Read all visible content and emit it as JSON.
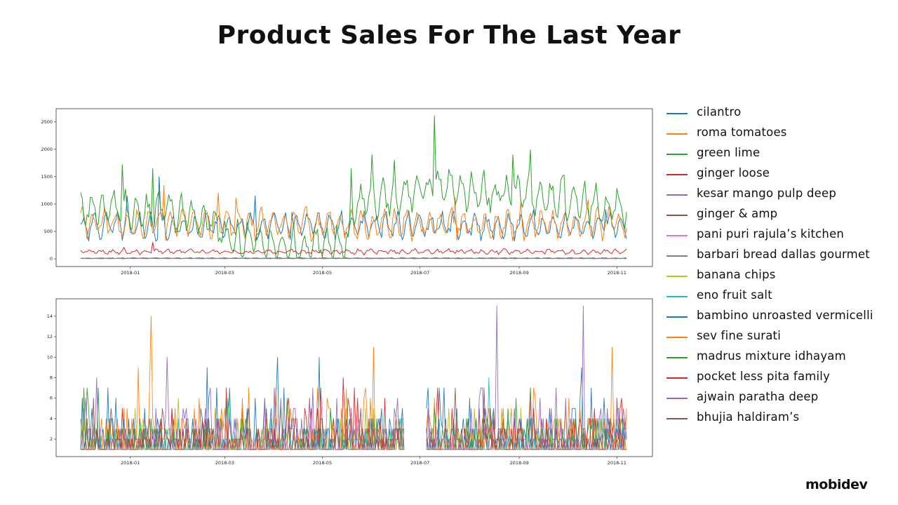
{
  "page": {
    "title": "Product Sales For The Last Year",
    "brand": "mobidev"
  },
  "legend": [
    {
      "label": "cilantro",
      "color": "#1f77b4"
    },
    {
      "label": "roma tomatoes",
      "color": "#ff7f0e"
    },
    {
      "label": "green lime",
      "color": "#2ca02c"
    },
    {
      "label": "ginger loose",
      "color": "#d62728"
    },
    {
      "label": "kesar mango pulp deep",
      "color": "#9467bd"
    },
    {
      "label": "ginger & amp",
      "color": "#8c564b"
    },
    {
      "label": "pani puri rajula’s kitchen",
      "color": "#e377c2"
    },
    {
      "label": "barbari bread dallas gourmet",
      "color": "#7f7f7f"
    },
    {
      "label": "banana chips",
      "color": "#bcbd22"
    },
    {
      "label": "eno fruit salt",
      "color": "#17becf"
    },
    {
      "label": "bambino unroasted vermicelli",
      "color": "#1f77b4"
    },
    {
      "label": "sev fine surati",
      "color": "#ff7f0e"
    },
    {
      "label": "madrus mixture idhayam",
      "color": "#2ca02c"
    },
    {
      "label": "pocket less pita family",
      "color": "#d62728"
    },
    {
      "label": "ajwain paratha deep",
      "color": "#9467bd"
    },
    {
      "label": "bhujia haldiram’s",
      "color": "#8c564b"
    }
  ],
  "chart_data": [
    {
      "type": "line",
      "title": "",
      "xlabel": "",
      "ylabel": "",
      "x_range": [
        "2017-12-01",
        "2018-11-07"
      ],
      "ylim": [
        -140,
        2740
      ],
      "x_ticks": [
        "2018-01",
        "2018-03",
        "2018-05",
        "2018-07",
        "2018-09",
        "2018-11"
      ],
      "y_ticks": [
        0,
        500,
        1000,
        1500,
        2000,
        2500
      ],
      "grid": false,
      "series": [
        {
          "name": "cilantro",
          "color": "#1f77b4",
          "level": 600,
          "amp": 180,
          "noise": 110,
          "spikes": [
            [
              "2017-12-30",
              1150
            ],
            [
              "2018-01-19",
              1500
            ],
            [
              "2018-03-20",
              1150
            ],
            [
              "2018-04-12",
              850
            ],
            [
              "2018-05-28",
              700
            ],
            [
              "2018-09-10",
              900
            ],
            [
              "2018-10-25",
              900
            ]
          ]
        },
        {
          "name": "roma tomatoes",
          "color": "#ff7f0e",
          "level": 640,
          "amp": 200,
          "noise": 130,
          "spikes": [
            [
              "2018-01-22",
              1340
            ],
            [
              "2018-02-25",
              1200
            ],
            [
              "2018-03-08",
              1110
            ],
            [
              "2018-07-23",
              1120
            ],
            [
              "2018-09-02",
              1050
            ],
            [
              "2018-10-14",
              1080
            ]
          ]
        },
        {
          "name": "green lime",
          "color": "#2ca02c",
          "segments": [
            [
              "2017-12-01",
              900
            ],
            [
              "2018-01-26",
              850
            ],
            [
              "2018-02-20",
              700
            ],
            [
              "2018-03-05",
              350
            ],
            [
              "2018-04-15",
              250
            ],
            [
              "2018-05-18",
              300
            ],
            [
              "2018-05-20",
              1000
            ],
            [
              "2018-06-15",
              1150
            ],
            [
              "2018-07-12",
              1300
            ],
            [
              "2018-08-15",
              1200
            ],
            [
              "2018-09-30",
              1100
            ],
            [
              "2018-11-05",
              900
            ]
          ],
          "amp": 250,
          "noise": 170,
          "spikes": [
            [
              "2017-12-27",
              1720
            ],
            [
              "2018-01-15",
              1650
            ],
            [
              "2018-05-19",
              1650
            ],
            [
              "2018-06-01",
              1900
            ],
            [
              "2018-06-15",
              1800
            ],
            [
              "2018-07-10",
              2610
            ],
            [
              "2018-08-28",
              1900
            ],
            [
              "2018-09-08",
              1990
            ],
            [
              "2018-09-29",
              1530
            ]
          ]
        },
        {
          "name": "ginger loose",
          "color": "#d62728",
          "level": 130,
          "amp": 30,
          "noise": 30,
          "spikes": [
            [
              "2018-01-15",
              300
            ],
            [
              "2017-12-28",
              210
            ]
          ]
        },
        {
          "name": "kesar mango pulp deep",
          "color": "#9467bd",
          "level": 14,
          "amp": 4,
          "noise": 5,
          "spikes": []
        },
        {
          "name": "ginger & amp",
          "color": "#8c564b",
          "level": 10,
          "amp": 3,
          "noise": 4,
          "spikes": []
        },
        {
          "name": "pani puri rajula’s kitchen",
          "color": "#e377c2",
          "level": 8,
          "amp": 3,
          "noise": 4,
          "spikes": []
        },
        {
          "name": "barbari bread dallas gourmet",
          "color": "#7f7f7f",
          "level": 6,
          "amp": 2,
          "noise": 3,
          "spikes": []
        }
      ]
    },
    {
      "type": "line",
      "title": "",
      "xlabel": "",
      "ylabel": "",
      "x_range": [
        "2017-12-01",
        "2018-11-07"
      ],
      "ylim": [
        0.3,
        15.7
      ],
      "x_ticks": [
        "2018-01",
        "2018-03",
        "2018-05",
        "2018-07",
        "2018-09",
        "2018-11"
      ],
      "y_ticks": [
        2,
        4,
        6,
        8,
        10,
        12,
        14
      ],
      "grid": false,
      "gap": [
        "2018-06-22",
        "2018-07-04"
      ],
      "series": [
        {
          "name": "banana chips",
          "color": "#bcbd22",
          "mean": 2.2,
          "spikes": []
        },
        {
          "name": "eno fruit salt",
          "color": "#17becf",
          "mean": 2.0,
          "spikes": [
            [
              "2018-08-13",
              8
            ]
          ]
        },
        {
          "name": "bambino unroasted vermicelli",
          "color": "#1f77b4",
          "mean": 2.6,
          "spikes": [
            [
              "2018-04-03",
              10
            ],
            [
              "2018-04-29",
              10
            ],
            [
              "2018-02-18",
              9
            ],
            [
              "2018-10-10",
              9
            ]
          ]
        },
        {
          "name": "sev fine surati",
          "color": "#ff7f0e",
          "mean": 2.8,
          "spikes": [
            [
              "2018-01-14",
              14
            ],
            [
              "2018-06-02",
              11
            ],
            [
              "2018-01-06",
              9
            ],
            [
              "2018-10-29",
              11
            ]
          ]
        },
        {
          "name": "madrus mixture idhayam",
          "color": "#2ca02c",
          "mean": 2.4,
          "spikes": [
            [
              "2017-12-03",
              7
            ],
            [
              "2017-12-05",
              7
            ]
          ]
        },
        {
          "name": "pocket less pita family",
          "color": "#d62728",
          "mean": 2.3,
          "spikes": [
            [
              "2018-05-14",
              8
            ]
          ]
        },
        {
          "name": "ajwain paratha deep",
          "color": "#9467bd",
          "mean": 2.5,
          "spikes": [
            [
              "2018-08-18",
              15
            ],
            [
              "2018-10-11",
              15
            ],
            [
              "2018-01-24",
              10
            ],
            [
              "2017-12-11",
              8
            ]
          ]
        },
        {
          "name": "bhujia haldiram’s",
          "color": "#8c564b",
          "mean": 1.9,
          "spikes": []
        }
      ]
    }
  ]
}
